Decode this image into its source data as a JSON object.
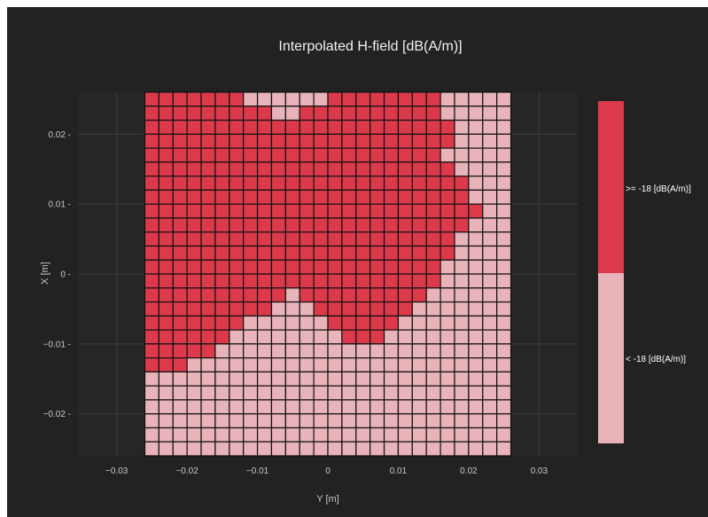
{
  "chart_data": {
    "type": "heatmap",
    "title": "Interpolated H-field [dB(A/m)]",
    "xlabel": "Y [m]",
    "ylabel": "X [m]",
    "x_range": [
      -0.0355,
      0.0355
    ],
    "y_range": [
      -0.026,
      0.026
    ],
    "x_ticks": [
      -0.03,
      -0.02,
      -0.01,
      0,
      0.01,
      0.02,
      0.03
    ],
    "x_tick_labels": [
      "−0.03",
      "−0.02",
      "−0.01",
      "0",
      "0.01",
      "0.02",
      "0.03"
    ],
    "y_ticks": [
      0.02,
      0.01,
      0,
      -0.01,
      -0.02
    ],
    "y_tick_labels": [
      "0.02",
      "0.01",
      "0",
      "−0.01",
      "−0.02"
    ],
    "grid": true,
    "colors": {
      "high": "#dc3a4b",
      "low": "#e8b3b9",
      "panel_bg": "#222222",
      "plot_bg": "#262626"
    },
    "legend": {
      "placement": "right",
      "high_label": ">= -18 [dB(A/m)]",
      "low_label": "< -18 [dB(A/m)]"
    },
    "grid_cells": {
      "y_start": -0.026,
      "y_end": 0.026,
      "x_start": -0.026,
      "x_end": 0.026,
      "step": 0.002,
      "rows_top_to_bottom": [
        "11111110000001111111100000",
        "11111111100111111111100000",
        "11111111111111111111110000",
        "11111111111111111111110000",
        "11111111111111111111100000",
        "11111111111111111111110000",
        "11111111111111111111111000",
        "11111111111111111111111000",
        "11111111111111111111111100",
        "11111111111111111111111000",
        "11111111111111111111110000",
        "11111111111111111111110000",
        "11111111111111111111100000",
        "11111111111111111111100000",
        "11111111110111111111000000",
        "11111111100011111110000000",
        "11111110000001111100000000",
        "11111100000000111000000000",
        "11111000000000000000000000",
        "11100000000000000000000000",
        "00000000000000000000000000",
        "00000000000000000000000000",
        "00000000000000000000000000",
        "00000000000000000000000000",
        "00000000000000000000000000",
        "00000000000000000000000000"
      ]
    }
  }
}
